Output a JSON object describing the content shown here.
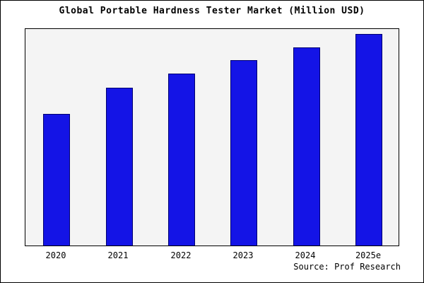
{
  "title": "Global Portable Hardness Tester Market (Million USD)",
  "source": "Source: Prof Research",
  "chart_data": {
    "type": "bar",
    "title": "Global Portable Hardness Tester Market (Million USD)",
    "categories": [
      "2020",
      "2021",
      "2022",
      "2023",
      "2024",
      "2025e"
    ],
    "values": [
      60.5,
      72.5,
      79,
      85,
      91,
      97
    ],
    "xlabel": "",
    "ylabel": "",
    "ylim": [
      0,
      100
    ],
    "y_tick_labels_visible": false,
    "grid": false,
    "legend_position": "none",
    "bar_color": "#1414e6",
    "bar_border_color": "#000070",
    "plot_background_color": "#f4f4f4",
    "source_label": "Source: Prof Research"
  }
}
